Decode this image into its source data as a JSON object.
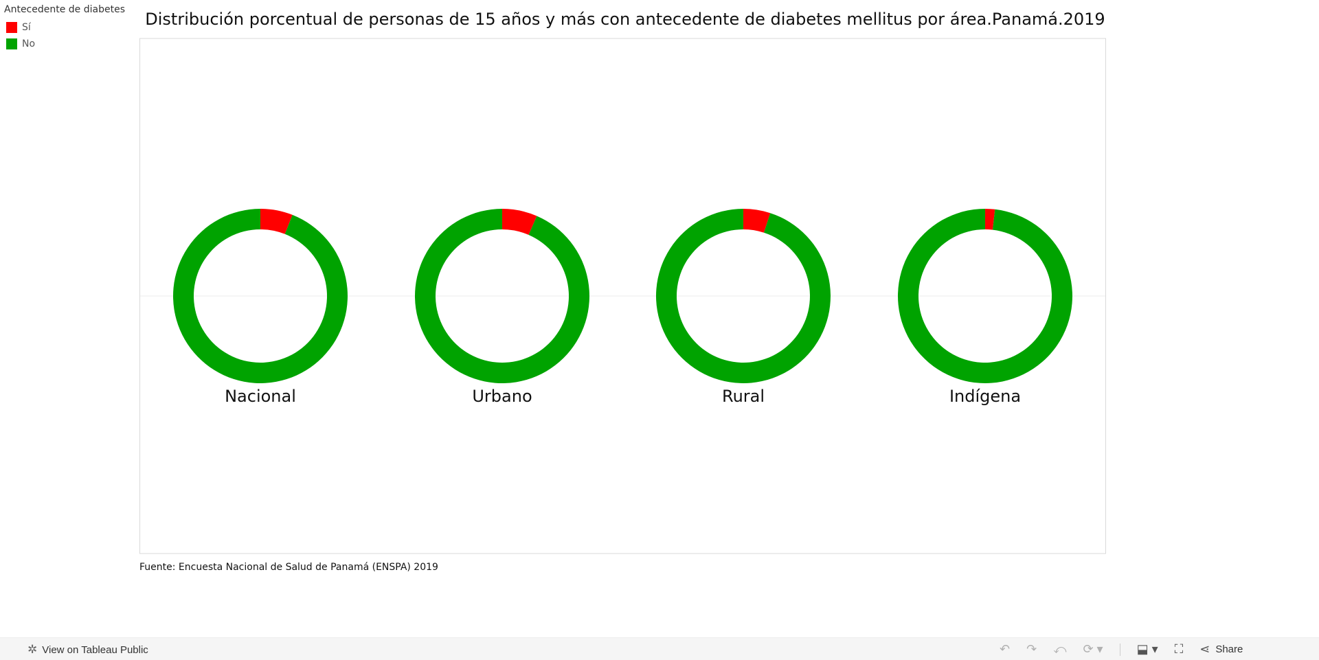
{
  "legend": {
    "title": "Antecedente de diabetes",
    "items": [
      {
        "label": "Sí",
        "color": "#ff0000"
      },
      {
        "label": "No",
        "color": "#00a300"
      }
    ]
  },
  "chart_data": {
    "type": "pie",
    "title": "Distribución porcentual de personas de 15 años y más con antecedente de diabetes mellitus por área.Panamá.2019",
    "series_names": [
      "Sí",
      "No"
    ],
    "colors": [
      "#ff0000",
      "#00a300"
    ],
    "charts": [
      {
        "label": "Nacional",
        "values": [
          6.0,
          94.0
        ]
      },
      {
        "label": "Urbano",
        "values": [
          6.5,
          93.5
        ]
      },
      {
        "label": "Rural",
        "values": [
          5.0,
          95.0
        ]
      },
      {
        "label": "Indígena",
        "values": [
          1.8,
          98.2
        ]
      }
    ]
  },
  "source": "Fuente: Encuesta Nacional de Salud de Panamá (ENSPA) 2019",
  "footer": {
    "view_label": "View on Tableau Public",
    "share_label": "Share",
    "icons": [
      "tableau-icon",
      "undo-icon",
      "redo-icon",
      "revert-icon",
      "refresh-icon",
      "download-icon",
      "fullscreen-icon",
      "share-icon"
    ]
  }
}
